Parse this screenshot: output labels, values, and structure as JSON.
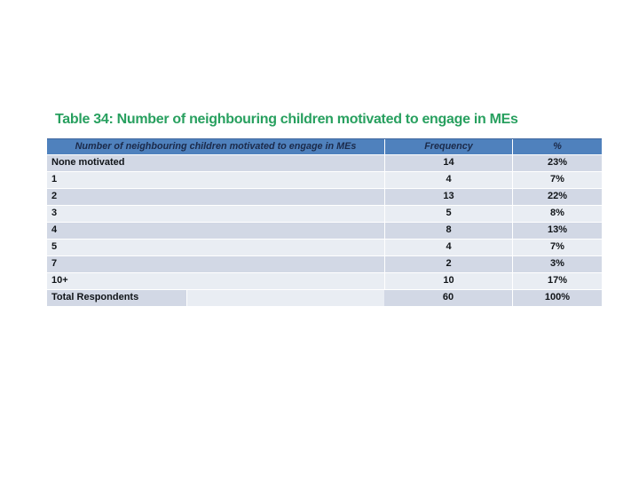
{
  "slide": {
    "background_color": "#ffffff",
    "title": {
      "text": "Table 34: Number of neighbouring children motivated to engage in MEs",
      "color": "#28a05f"
    }
  },
  "table": {
    "style": {
      "header_bg": "#4f81bd",
      "header_text_color": "#1b2a4a",
      "band_dark": "#d2d8e5",
      "band_light": "#e9edf3",
      "separator_color": "#ffffff"
    },
    "columns": {
      "label": "Number of neighbouring children motivated to engage in MEs",
      "frequency": "Frequency",
      "percent": "%"
    },
    "rows": [
      {
        "label": "None motivated",
        "frequency": "14",
        "percent": "23%"
      },
      {
        "label": "1",
        "frequency": "4",
        "percent": "7%"
      },
      {
        "label": "2",
        "frequency": "13",
        "percent": "22%"
      },
      {
        "label": "3",
        "frequency": "5",
        "percent": "8%"
      },
      {
        "label": "4",
        "frequency": "8",
        "percent": "13%"
      },
      {
        "label": "5",
        "frequency": "4",
        "percent": "7%"
      },
      {
        "label": "7",
        "frequency": "2",
        "percent": "3%"
      },
      {
        "label": "10+",
        "frequency": "10",
        "percent": "17%"
      }
    ],
    "total_row": {
      "label": "Total Respondents",
      "spacer": "",
      "frequency": "60",
      "percent": "100%"
    }
  }
}
